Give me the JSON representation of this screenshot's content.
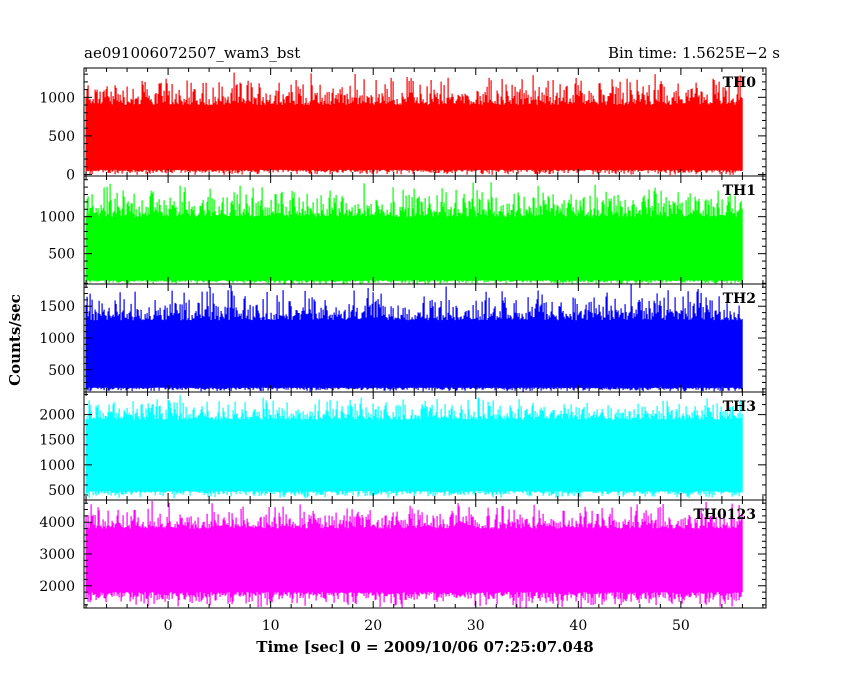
{
  "header": {
    "title": "ae091006072507_wam3_bst",
    "bin_time": "Bin time: 1.5625E−2 s"
  },
  "chart_data": {
    "type": "line",
    "title": "ae091006072507_wam3_bst",
    "xlabel": "Time [sec] 0 = 2009/10/06 07:25:07.048",
    "ylabel": "Counts/sec",
    "xlim": [
      -8.2,
      58.3
    ],
    "x_ticks": [
      0,
      10,
      20,
      30,
      40,
      50
    ],
    "x_range_data": [
      -8.0,
      56.0
    ],
    "grid": false,
    "panels": [
      {
        "name": "TH0",
        "color": "#ff0000",
        "ylim": [
          -20,
          1380
        ],
        "yticks": [
          0,
          500,
          1000
        ],
        "band": [
          60,
          900
        ],
        "spike": 1300,
        "dip": 0
      },
      {
        "name": "TH1",
        "color": "#00ff00",
        "ylim": [
          90,
          1550
        ],
        "yticks": [
          500,
          1000
        ],
        "band": [
          140,
          1000
        ],
        "spike": 1450,
        "dip": 90
      },
      {
        "name": "TH2",
        "color": "#0000ff",
        "ylim": [
          150,
          1850
        ],
        "yticks": [
          500,
          1000,
          1500
        ],
        "band": [
          220,
          1280
        ],
        "spike": 1800,
        "dip": 160
      },
      {
        "name": "TH3",
        "color": "#00ffff",
        "ylim": [
          300,
          2450
        ],
        "yticks": [
          500,
          1000,
          1500,
          2000
        ],
        "band": [
          480,
          1900
        ],
        "spike": 2350,
        "dip": 350
      },
      {
        "name": "TH0123",
        "color": "#ff00ff",
        "ylim": [
          1300,
          4700
        ],
        "yticks": [
          2000,
          3000,
          4000
        ],
        "band": [
          1800,
          3800
        ],
        "spike": 4600,
        "dip": 1350
      }
    ]
  }
}
